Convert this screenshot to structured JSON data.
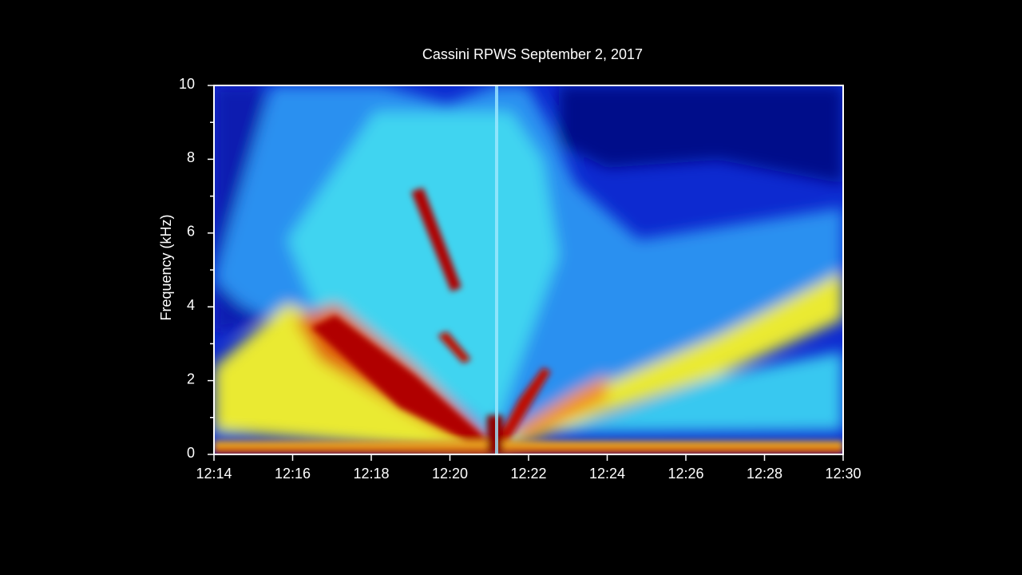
{
  "chart_data": {
    "type": "spectrogram",
    "title": "Cassini RPWS September 2, 2017",
    "ylabel": "Frequency (kHz)",
    "ylim": [
      0,
      10
    ],
    "yticks": [
      0,
      2,
      4,
      6,
      8,
      10
    ],
    "y_minor_ticks": [
      1,
      3,
      5,
      7,
      9
    ],
    "xlim": [
      "12:14",
      "12:30"
    ],
    "xticks": [
      "12:14",
      "12:16",
      "12:18",
      "12:20",
      "12:22",
      "12:24",
      "12:26",
      "12:28",
      "12:30"
    ]
  }
}
